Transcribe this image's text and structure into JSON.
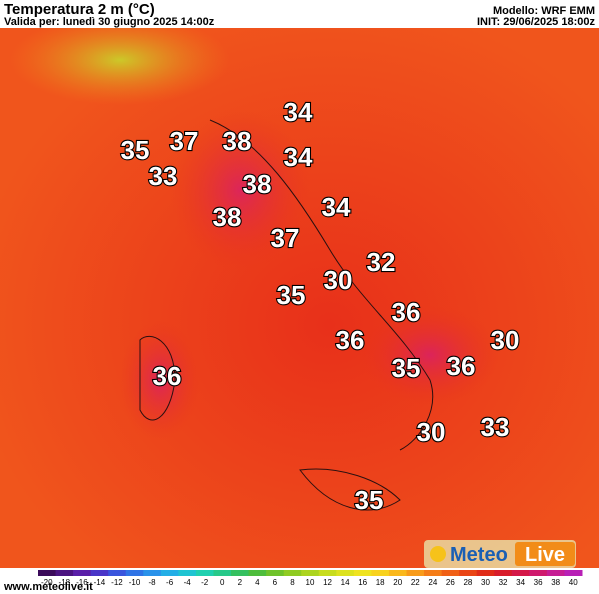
{
  "header": {
    "title": "Temperatura 2 m (°C)",
    "valid": "Valida per: lunedì 30 giugno 2025 14:00z",
    "model": "Modello: WRF EMM",
    "init": "INIT: 29/06/2025 18:00z"
  },
  "map_labels": [
    34,
    35,
    37,
    38,
    34,
    33,
    38,
    34,
    38,
    37,
    32,
    30,
    35,
    36,
    36,
    30,
    36,
    35,
    36,
    30,
    33,
    35
  ],
  "colorbar": {
    "ticks": [
      -20,
      -18,
      -16,
      -14,
      -12,
      -10,
      -8,
      -6,
      -4,
      -2,
      0,
      2,
      4,
      6,
      8,
      10,
      12,
      14,
      16,
      18,
      20,
      22,
      24,
      26,
      28,
      30,
      32,
      34,
      36,
      38,
      40
    ],
    "colors": [
      "#3b0b5a",
      "#4b1480",
      "#5a1fa8",
      "#4a36c8",
      "#3a55dd",
      "#2f74e6",
      "#2a92ea",
      "#23aee6",
      "#1fc4d2",
      "#20d0b0",
      "#27c98a",
      "#35c060",
      "#4ebd3c",
      "#6fc22a",
      "#8fcb22",
      "#acd41f",
      "#c7dc1e",
      "#dde21f",
      "#efe320",
      "#f8d21e",
      "#fab81c",
      "#f89b1a",
      "#f57d18",
      "#f06016",
      "#e94515",
      "#e02c18",
      "#d81c2a",
      "#d41848",
      "#cf1a6e",
      "#c61e94",
      "#b820b6"
    ]
  },
  "footer": {
    "site": "www.meteolive.it",
    "logo_a": "Meteo",
    "logo_b": "Live"
  }
}
